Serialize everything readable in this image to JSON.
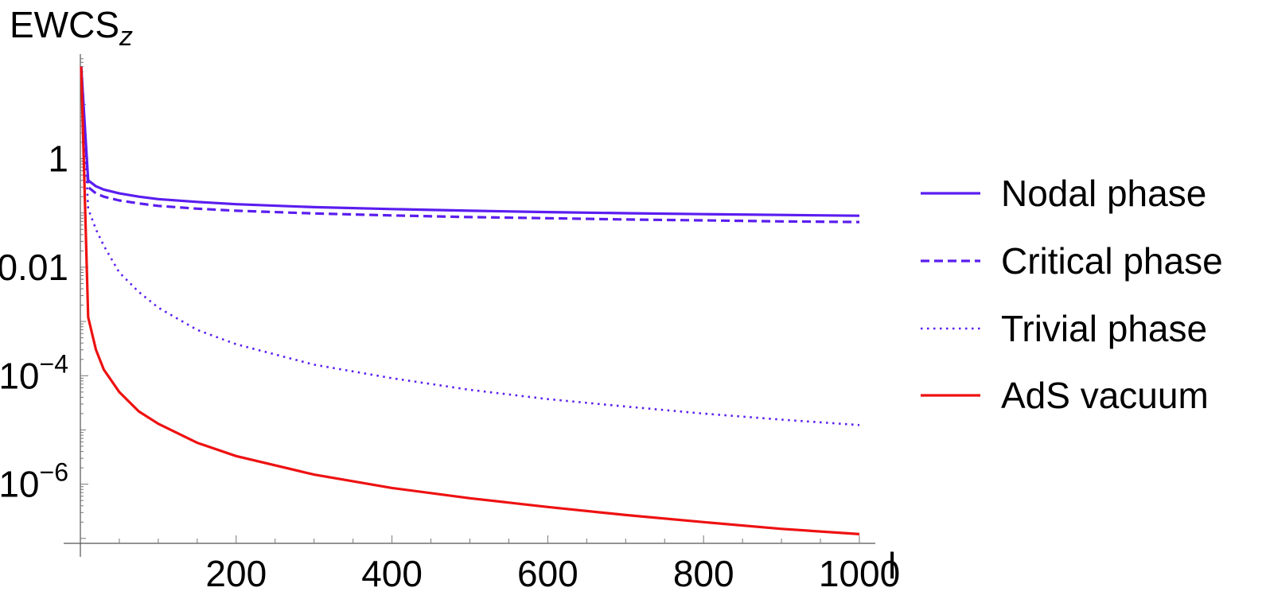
{
  "chart_data": {
    "type": "line",
    "ylabel": "EWCS",
    "ylabel_sub": "z",
    "xlabel": "l",
    "xlim": [
      0,
      1000
    ],
    "ylim_log10": [
      -8,
      3
    ],
    "y_scale": "log",
    "x_ticks": [
      200,
      400,
      600,
      800,
      1000
    ],
    "y_ticks": [
      {
        "value": 1,
        "label": "1",
        "exp": ""
      },
      {
        "value": 0.01,
        "label": "0.01",
        "exp": ""
      },
      {
        "value": 0.0001,
        "label": "10",
        "exp": "−4"
      },
      {
        "value": 1e-06,
        "label": "10",
        "exp": "−6"
      }
    ],
    "legend_position": "right",
    "series": [
      {
        "name": "Nodal phase",
        "color": "#5b1df0",
        "dash": "solid",
        "x": [
          1,
          10,
          20,
          30,
          50,
          75,
          100,
          150,
          200,
          300,
          400,
          500,
          600,
          700,
          800,
          900,
          1000
        ],
        "y": [
          50,
          0.4,
          0.31,
          0.27,
          0.23,
          0.2,
          0.18,
          0.16,
          0.145,
          0.128,
          0.118,
          0.11,
          0.104,
          0.099,
          0.095,
          0.092,
          0.089
        ]
      },
      {
        "name": "Critical phase",
        "color": "#5b1df0",
        "dash": "dashed",
        "x": [
          1,
          10,
          20,
          30,
          50,
          75,
          100,
          150,
          200,
          300,
          400,
          500,
          600,
          700,
          800,
          900,
          1000
        ],
        "y": [
          50,
          0.3,
          0.23,
          0.2,
          0.17,
          0.15,
          0.135,
          0.12,
          0.11,
          0.098,
          0.09,
          0.084,
          0.08,
          0.076,
          0.073,
          0.07,
          0.068
        ]
      },
      {
        "name": "Trivial phase",
        "color": "#5b1df0",
        "dash": "dotted",
        "x": [
          1,
          10,
          20,
          30,
          50,
          75,
          100,
          150,
          200,
          300,
          400,
          500,
          600,
          700,
          800,
          900,
          1000
        ],
        "y": [
          50,
          0.12,
          0.05,
          0.025,
          0.008,
          0.0035,
          0.0018,
          0.0007,
          0.00038,
          0.00016,
          9e-05,
          5.5e-05,
          3.7e-05,
          2.7e-05,
          2e-05,
          1.55e-05,
          1.23e-05
        ]
      },
      {
        "name": "AdS vacuum",
        "color": "#ee1111",
        "dash": "solid",
        "x": [
          1,
          10,
          20,
          30,
          50,
          75,
          100,
          150,
          200,
          300,
          400,
          500,
          600,
          700,
          800,
          900,
          1000
        ],
        "y": [
          50,
          0.0012,
          0.0003,
          0.00013,
          5e-05,
          2.2e-05,
          1.3e-05,
          5.8e-06,
          3.3e-06,
          1.5e-06,
          8.5e-07,
          5.5e-07,
          3.8e-07,
          2.7e-07,
          2e-07,
          1.5e-07,
          1.2e-07
        ]
      }
    ]
  }
}
